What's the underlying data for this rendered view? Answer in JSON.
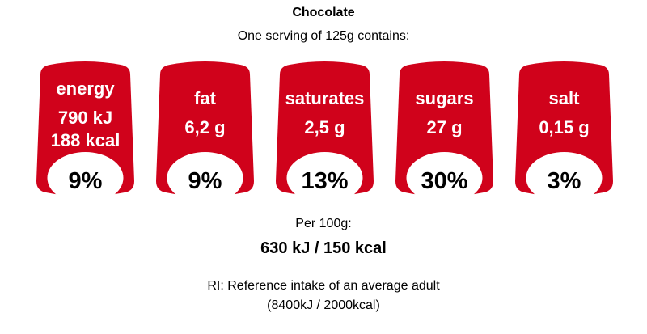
{
  "title": "Chocolate",
  "subtitle": "One serving of 125g contains:",
  "colors": {
    "label_red": "#d0021b",
    "text_white": "#ffffff",
    "pct_bg": "#ffffff"
  },
  "labels": [
    {
      "name": "energy",
      "value1": "790 kJ",
      "value2": "188 kcal",
      "percent": "9%"
    },
    {
      "name": "fat",
      "value1": "6,2 g",
      "percent": "9%"
    },
    {
      "name": "saturates",
      "value1": "2,5 g",
      "percent": "13%"
    },
    {
      "name": "sugars",
      "value1": "27 g",
      "percent": "30%"
    },
    {
      "name": "salt",
      "value1": "0,15 g",
      "percent": "3%"
    }
  ],
  "per100": {
    "label": "Per 100g:",
    "value": "630 kJ / 150 kcal"
  },
  "ri": {
    "line1": "RI: Reference intake of an average adult",
    "line2": "(8400kJ / 2000kcal)"
  }
}
